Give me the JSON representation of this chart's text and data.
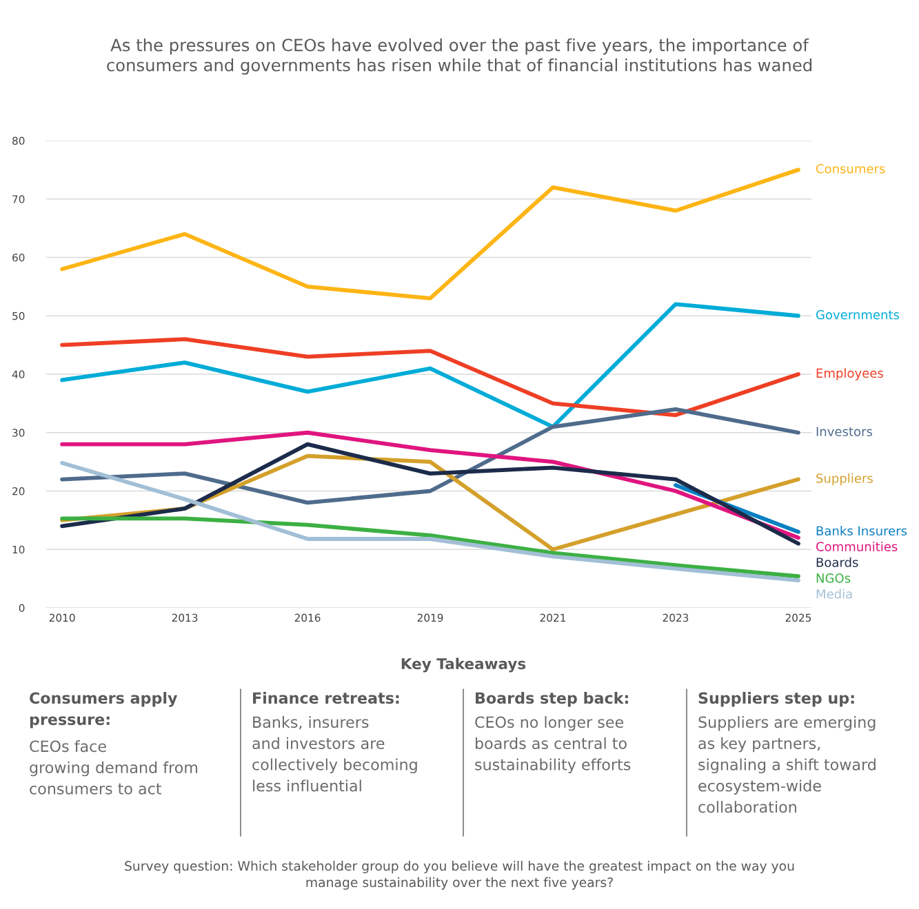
{
  "chart_data": {
    "type": "line",
    "title": "As the pressures on CEOs have evolved over the past five years, the importance of\nconsumers and governments has risen while that of financial institutions has waned",
    "categories": [
      "2010",
      "2013",
      "2016",
      "2019",
      "2021",
      "2023",
      "2025"
    ],
    "ylim": [
      0,
      80
    ],
    "yticks": [
      0,
      10,
      20,
      30,
      40,
      50,
      60,
      70,
      80
    ],
    "grid": "y",
    "legend": false,
    "line_style": "solid",
    "marker": "none",
    "series": [
      {
        "name": "Consumers",
        "color": "#fdb515",
        "values": [
          58,
          64,
          55,
          53,
          72,
          68,
          75
        ]
      },
      {
        "name": "Governments",
        "color": "#00acd7",
        "values": [
          39,
          42,
          37,
          41,
          31,
          52,
          50
        ]
      },
      {
        "name": "Employees",
        "color": "#ee3f25",
        "values": [
          45,
          46,
          43,
          44,
          35,
          33,
          40
        ]
      },
      {
        "name": "Investors",
        "color": "#4f6b8c",
        "values": [
          22,
          23,
          18,
          20,
          31,
          34,
          30
        ]
      },
      {
        "name": "Suppliers",
        "color": "#d4a02b",
        "values": [
          15,
          17,
          26,
          25,
          10,
          16,
          22
        ]
      },
      {
        "name": "Banks Insurers",
        "color": "#0a7fc1",
        "values": [
          null,
          null,
          null,
          null,
          null,
          21,
          13
        ]
      },
      {
        "name": "Communities",
        "color": "#e0157f",
        "values": [
          28,
          28,
          30,
          27,
          25,
          20,
          12
        ]
      },
      {
        "name": "Boards",
        "color": "#1c2b4a",
        "values": [
          14,
          17,
          28,
          23,
          24,
          22,
          11
        ]
      },
      {
        "name": "NGOs",
        "color": "#3cb043",
        "values": [
          15.3,
          15.3,
          14.2,
          12.4,
          9.4,
          7.3,
          5.4
        ]
      },
      {
        "name": "Media",
        "color": "#a2bfd6",
        "values": [
          24.8,
          18.6,
          11.8,
          11.8,
          8.8,
          6.7,
          4.7
        ]
      }
    ],
    "annotations": [
      "Key Takeaways",
      "Consumers apply\npressure:",
      "CEOs face\ngrowing demand from\nconsumers to act",
      "Finance retreats:",
      "Banks, insurers\nand investors are\ncollectively becoming\nless influential",
      "Boards step back:",
      "CEOs no longer see\nboards as central to\nsustainability efforts",
      "Suppliers step up:",
      "Suppliers are emerging\nas key partners,\nsignaling a shift toward\necosystem-wide\ncollaboration",
      "Survey question: Which stakeholder group do you believe will have the greatest impact on the way you\nmanage sustainability over the next five years?"
    ]
  }
}
